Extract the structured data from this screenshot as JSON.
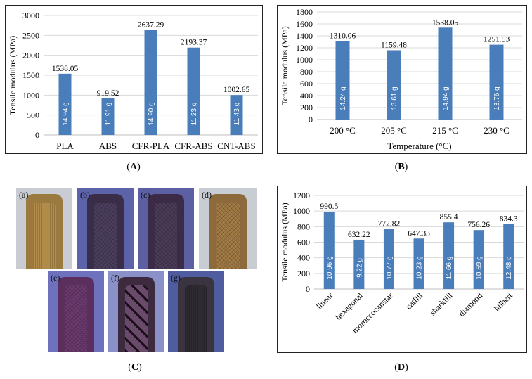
{
  "captions": {
    "a": "A",
    "b": "B",
    "c": "C",
    "d": "D"
  },
  "charts": [
    {
      "id": "A",
      "type": "bar",
      "ylabel": "Tensile modulus (MPa)",
      "xlabel": "",
      "ylim": [
        0,
        3000
      ],
      "yticks": [
        0,
        500,
        1000,
        1500,
        2000,
        2500,
        3000
      ],
      "categories": [
        "PLA",
        "ABS",
        "CFR-PLA",
        "CFR-ABS",
        "CNT-ABS"
      ],
      "values": [
        1538.05,
        919.52,
        2637.29,
        2193.37,
        1002.65
      ],
      "value_labels": [
        "1538.05",
        "919.52",
        "2637.29",
        "2193.37",
        "1002.65"
      ],
      "inner_labels": [
        "14.94 g",
        "11.91 g",
        "14.90 g",
        "11.23 g",
        "11.43 g"
      ],
      "bar_color": "#4a7ebb",
      "grid": true
    },
    {
      "id": "B",
      "type": "bar",
      "ylabel": "Tensile modulus (MPa)",
      "xlabel": "Temperature (°C)",
      "ylim": [
        0,
        1800
      ],
      "yticks": [
        0,
        200,
        400,
        600,
        800,
        1000,
        1200,
        1400,
        1600,
        1800
      ],
      "categories": [
        "200 °C",
        "205 °C",
        "215 °C",
        "230 °C"
      ],
      "values": [
        1310.06,
        1159.48,
        1538.05,
        1251.53
      ],
      "value_labels": [
        "1310.06",
        "1159.48",
        "1538.05",
        "1251.53"
      ],
      "inner_labels": [
        "14.24 g",
        "13.61 g",
        "14.94 g",
        "13.76 g"
      ],
      "bar_color": "#4a7ebb",
      "grid": true
    },
    {
      "id": "D",
      "type": "bar",
      "ylabel": "Tensile modulus (MPa)",
      "xlabel": "",
      "ylim": [
        0,
        1200
      ],
      "yticks": [
        0,
        200,
        400,
        600,
        800,
        1000,
        1200
      ],
      "categories": [
        "linear",
        "hexagonal",
        "moroccocanstar",
        "catfill",
        "sharkfill",
        "diamond",
        "hilbert"
      ],
      "values": [
        990.5,
        632.22,
        772.82,
        647.33,
        855.4,
        756.26,
        834.3
      ],
      "value_labels": [
        "990.5",
        "632.22",
        "772.82",
        "647.33",
        "855.4",
        "756.26",
        "834.3"
      ],
      "inner_labels": [
        "10.96 g",
        "9.22 g",
        "10.77 g",
        "10.23 g",
        "11.66 g",
        "10.59 g",
        "12.48 g"
      ],
      "bar_color": "#4a7ebb",
      "grid": true
    }
  ],
  "photos": {
    "labels": [
      "(a)",
      "(b)",
      "(c)",
      "(d)",
      "(e)",
      "(f)",
      "(g)"
    ],
    "backgrounds": [
      "#c9ccd2",
      "#5d63a8",
      "#5c5fa2",
      "#c8ccd3",
      "#6e72be",
      "#8a90c8",
      "#4f5ca0"
    ],
    "specimen_colors": [
      "#9a7a3e",
      "#3a2d48",
      "#3b2b46",
      "#8c6a3b",
      "#5a2f5e",
      "#3e2a3e",
      "#3a3440"
    ],
    "inner_colors": [
      "#b08b4a",
      "#4c3f5e",
      "#4b3c58",
      "#a47c46",
      "#6d3a6f",
      "#2c1c2a",
      "#2e2a32"
    ]
  }
}
